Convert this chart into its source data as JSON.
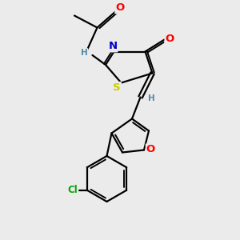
{
  "bg_color": "#ebebeb",
  "bond_color": "#000000",
  "bond_width": 1.6,
  "dbo": 0.08,
  "atom_colors": {
    "O": "#ff0000",
    "N": "#0000cc",
    "S": "#cccc00",
    "Cl": "#00aa00",
    "H": "#5588aa"
  },
  "font_size": 8.5,
  "fig_size": [
    3.0,
    3.0
  ],
  "dpi": 100
}
